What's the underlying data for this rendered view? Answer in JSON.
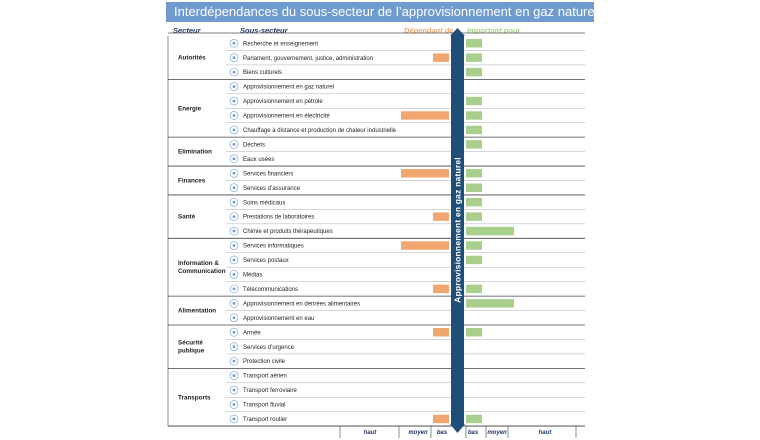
{
  "title": "Interdépendances du sous-secteur de l’approvisionnement en gaz naturel",
  "headers": {
    "sector": "Secteur",
    "subsector": "Sous-secteur",
    "dependent": "Dépendant de",
    "important": "Important pour"
  },
  "colors": {
    "title_bg": "#6f9bd1",
    "dependent_bar": "#f1a66f",
    "important_bar": "#a9cf8d",
    "arrow": "#1f4e79",
    "header_text": "#1f3864"
  },
  "chart_data": {
    "type": "bar",
    "title": "Interdépendances du sous-secteur de l’approvisionnement en gaz naturel",
    "center_label": "Approvisionnement en gaz naturel",
    "level_scale": [
      "bas",
      "moyen",
      "haut"
    ],
    "dependent_axis_labels": [
      "haut",
      "moyen",
      "bas"
    ],
    "important_axis_labels": [
      "bas",
      "moyen",
      "haut"
    ],
    "sectors": [
      {
        "name": "Autorités",
        "rows": [
          {
            "label": "Recherche et enseignement",
            "icon": "research-icon",
            "dependent": 0,
            "important": 1
          },
          {
            "label": "Parlament, gouvernement, justice, administration",
            "icon": "government-icon",
            "dependent": 1,
            "important": 1
          },
          {
            "label": "Biens culturels",
            "icon": "culture-icon",
            "dependent": 0,
            "important": 1
          }
        ]
      },
      {
        "name": "Energie",
        "rows": [
          {
            "label": "Approvisionnement en gaz naturel",
            "icon": "gas-icon",
            "dependent": 0,
            "important": 0
          },
          {
            "label": "Approvisionnement en pétrole",
            "icon": "oil-icon",
            "dependent": 0,
            "important": 1
          },
          {
            "label": "Approvisionnement en électricité",
            "icon": "electricity-icon",
            "dependent": 3,
            "important": 1
          },
          {
            "label": "Chauffage à distance et production de chaleur industrielle",
            "icon": "heating-icon",
            "dependent": 0,
            "important": 1
          }
        ]
      },
      {
        "name": "Elimination",
        "rows": [
          {
            "label": "Déchets",
            "icon": "waste-icon",
            "dependent": 0,
            "important": 1
          },
          {
            "label": "Eaux usées",
            "icon": "wastewater-icon",
            "dependent": 0,
            "important": 0
          }
        ]
      },
      {
        "name": "Finances",
        "rows": [
          {
            "label": "Services financiers",
            "icon": "finance-icon",
            "dependent": 3,
            "important": 1
          },
          {
            "label": "Services d’assurance",
            "icon": "insurance-icon",
            "dependent": 0,
            "important": 1
          }
        ]
      },
      {
        "name": "Santé",
        "rows": [
          {
            "label": "Soins médicaux",
            "icon": "medical-icon",
            "dependent": 0,
            "important": 1
          },
          {
            "label": "Prestations de laboratoires",
            "icon": "lab-icon",
            "dependent": 1,
            "important": 1
          },
          {
            "label": "Chimie et produits thérapeutiques",
            "icon": "chemistry-icon",
            "dependent": 0,
            "important": 3
          }
        ]
      },
      {
        "name": "Information & Communication",
        "rows": [
          {
            "label": "Services informatiques",
            "icon": "it-icon",
            "dependent": 3,
            "important": 1
          },
          {
            "label": "Services postaux",
            "icon": "postal-icon",
            "dependent": 0,
            "important": 1
          },
          {
            "label": "Médias",
            "icon": "media-icon",
            "dependent": 0,
            "important": 0
          },
          {
            "label": "Télécommunications",
            "icon": "telecom-icon",
            "dependent": 1,
            "important": 1
          }
        ]
      },
      {
        "name": "Alimentation",
        "rows": [
          {
            "label": "Approvisionnement en denrées alimentaires",
            "icon": "food-icon",
            "dependent": 0,
            "important": 3
          },
          {
            "label": "Approvisionnement en eau",
            "icon": "water-icon",
            "dependent": 0,
            "important": 0
          }
        ]
      },
      {
        "name": "Sécurité publique",
        "rows": [
          {
            "label": "Armée",
            "icon": "army-icon",
            "dependent": 1,
            "important": 1
          },
          {
            "label": "Services d’urgence",
            "icon": "emergency-icon",
            "dependent": 0,
            "important": 0
          },
          {
            "label": "Protection civile",
            "icon": "civil-protection-icon",
            "dependent": 0,
            "important": 0
          }
        ]
      },
      {
        "name": "Transports",
        "rows": [
          {
            "label": "Transport aérien",
            "icon": "air-transport-icon",
            "dependent": 0,
            "important": 0
          },
          {
            "label": "Transport ferroviaire",
            "icon": "rail-transport-icon",
            "dependent": 0,
            "important": 0
          },
          {
            "label": "Transport fluvial",
            "icon": "river-transport-icon",
            "dependent": 0,
            "important": 0
          },
          {
            "label": "Transport routier",
            "icon": "road-transport-icon",
            "dependent": 1,
            "important": 1
          }
        ]
      }
    ]
  }
}
